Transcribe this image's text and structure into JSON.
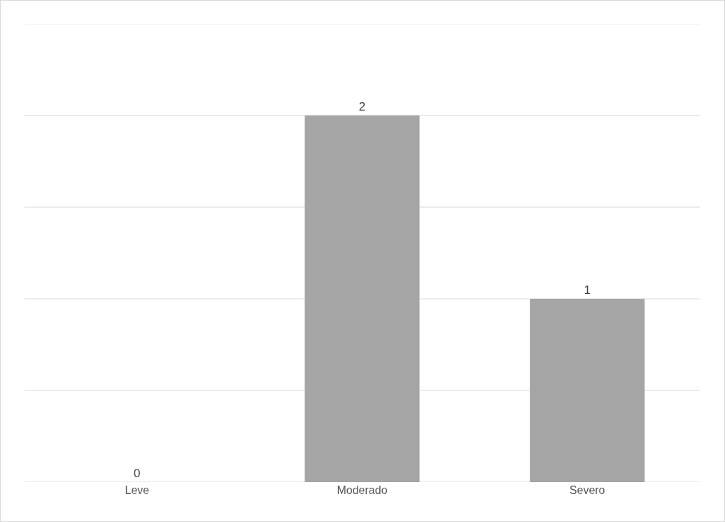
{
  "chart_data": {
    "type": "bar",
    "categories": [
      "Leve",
      "Moderado",
      "Severo"
    ],
    "values": [
      0,
      2,
      1
    ],
    "color": "#a5a5a5",
    "data_labels": true,
    "ylim": [
      0,
      2.5
    ],
    "yticks": [
      {
        "value": 0,
        "label": null
      },
      {
        "value": 0.5,
        "label": null
      },
      {
        "value": 1,
        "label": null
      },
      {
        "value": 1.5,
        "label": null
      },
      {
        "value": 2,
        "label": null
      },
      {
        "value": 2.5,
        "label": null
      }
    ],
    "tick_labels": "x",
    "grid": "y"
  }
}
